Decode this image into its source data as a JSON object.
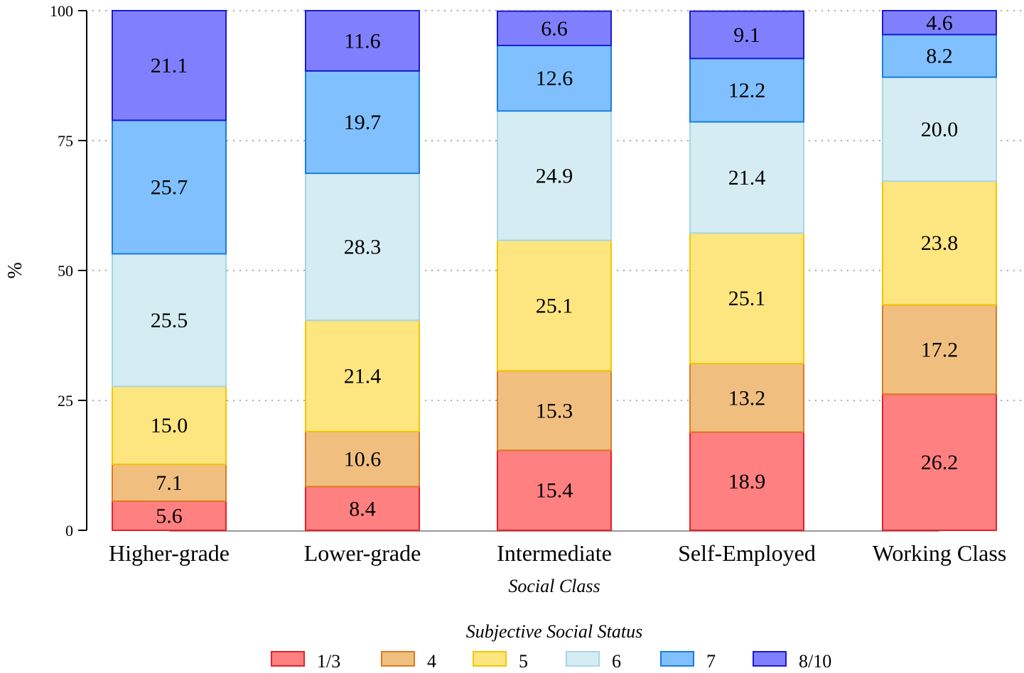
{
  "chart_data": {
    "type": "bar",
    "stacked": true,
    "title": "",
    "xlabel": "Social Class",
    "ylabel": "%",
    "ylim": [
      0,
      100
    ],
    "yticks": [
      0,
      25,
      50,
      75,
      100
    ],
    "grid": "horizontal-dotted",
    "categories": [
      "Higher-grade",
      "Lower-grade",
      "Intermediate",
      "Self-Employed",
      "Working Class"
    ],
    "legend": {
      "title": "Subjective Social Status",
      "position": "bottom"
    },
    "series": [
      {
        "name": "1/3",
        "fill": "#ff8080",
        "stroke": "#e8202a",
        "values": [
          5.6,
          8.4,
          15.4,
          18.9,
          26.2
        ]
      },
      {
        "name": "4",
        "fill": "#f0bf80",
        "stroke": "#dc7a22",
        "values": [
          7.1,
          10.6,
          15.3,
          13.2,
          17.2
        ]
      },
      {
        "name": "5",
        "fill": "#fde680",
        "stroke": "#f5c400",
        "values": [
          15.0,
          21.4,
          25.1,
          25.1,
          23.8
        ]
      },
      {
        "name": "6",
        "fill": "#d5ecf2",
        "stroke": "#a6d6e6",
        "values": [
          25.5,
          28.3,
          24.9,
          21.4,
          20.0
        ]
      },
      {
        "name": "7",
        "fill": "#80c0ff",
        "stroke": "#1a7ce0",
        "values": [
          25.7,
          19.7,
          12.6,
          12.2,
          8.2
        ]
      },
      {
        "name": "8/10",
        "fill": "#8080ff",
        "stroke": "#1a1ad0",
        "values": [
          21.1,
          11.6,
          6.6,
          9.1,
          4.6
        ]
      }
    ]
  }
}
